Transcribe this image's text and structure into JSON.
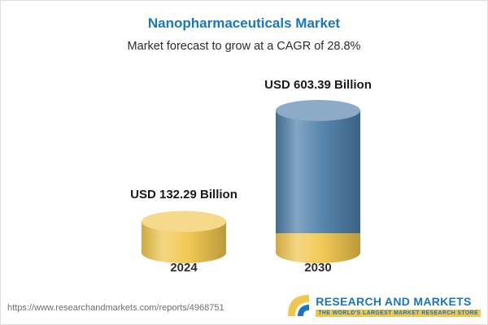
{
  "header": {
    "title": "Nanopharmaceuticals Market",
    "subtitle": "Market forecast to grow at a CAGR of 28.8%"
  },
  "chart_data": {
    "type": "bar",
    "style": "3d-cylinder",
    "title": "Nanopharmaceuticals Market",
    "subtitle": "Market forecast to grow at a CAGR of 28.8%",
    "categories": [
      "2024",
      "2030"
    ],
    "values": [
      132.29,
      603.39
    ],
    "unit": "USD Billion",
    "value_labels": [
      "USD 132.29 Billion",
      "USD 603.39 Billion"
    ],
    "cagr": "28.8%",
    "legend": "none",
    "grid": "off",
    "bar_styles": [
      {
        "color": "#f0c64c"
      },
      {
        "color": "#4d7ea8",
        "base_color": "#f0c64c",
        "base_height": 24
      }
    ]
  },
  "footer": {
    "url": "https://www.researchandmarkets.com/reports/4968751",
    "logo_title": "RESEARCH AND MARKETS",
    "logo_tagline": "THE WORLD'S LARGEST MARKET RESEARCH STORE",
    "brand_blue": "#1b75bc",
    "brand_yellow": "#f0c64c"
  }
}
